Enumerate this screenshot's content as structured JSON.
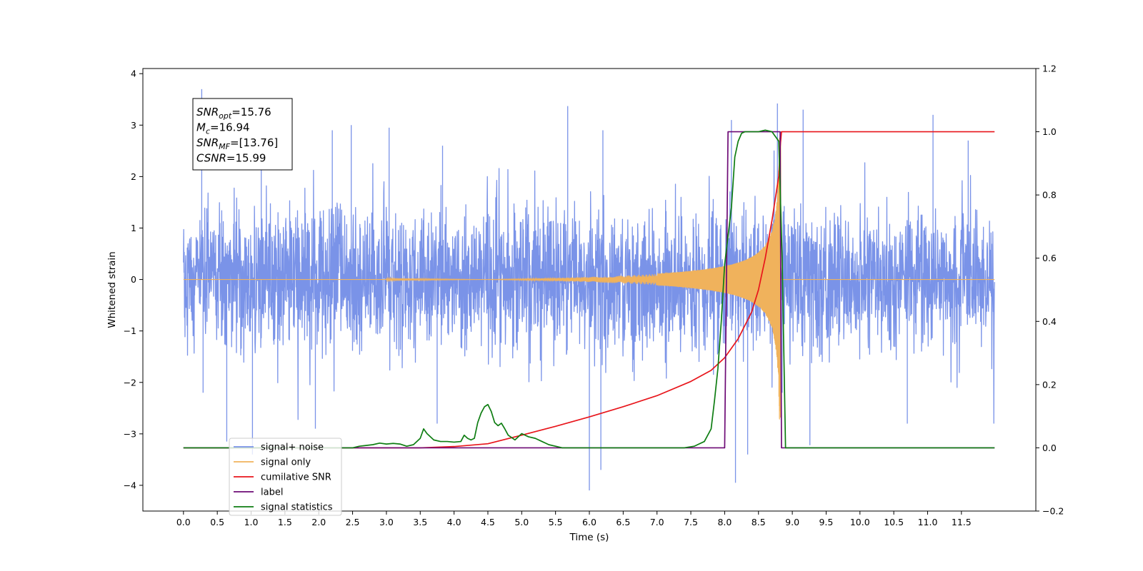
{
  "chart_data": {
    "type": "line",
    "xlabel": "Time (s)",
    "ylabel": "Whitened strain",
    "xlim": [
      -0.6,
      12.6
    ],
    "ylim": [
      -4.5,
      4.1
    ],
    "ylim_right": [
      -0.2,
      1.2
    ],
    "x_ticks": [
      0.0,
      0.5,
      1.0,
      1.5,
      2.0,
      2.5,
      3.0,
      3.5,
      4.0,
      4.5,
      5.0,
      5.5,
      6.0,
      6.5,
      7.0,
      7.5,
      8.0,
      8.5,
      9.0,
      9.5,
      10.0,
      10.5,
      11.0,
      11.5
    ],
    "x_tick_labels": [
      "0.0",
      "0.5",
      "1.0",
      "1.5",
      "2.0",
      "2.5",
      "3.0",
      "3.5",
      "4.0",
      "4.5",
      "5.0",
      "5.5",
      "6.0",
      "6.5",
      "7.0",
      "7.5",
      "8.0",
      "8.5",
      "9.0",
      "9.5",
      "10.0",
      "10.5",
      "11.0",
      "11.5"
    ],
    "y_ticks": [
      4,
      3,
      2,
      1,
      0,
      -1,
      -2,
      -3,
      -4
    ],
    "y_tick_labels": [
      "4",
      "3",
      "2",
      "1",
      "0",
      "−1",
      "−2",
      "−3",
      "−4"
    ],
    "y_ticks_right": [
      1.2,
      1.0,
      0.8,
      0.6,
      0.4,
      0.2,
      0.0,
      -0.2
    ],
    "y_tick_labels_right": [
      "1.2",
      "1.0",
      "0.8",
      "0.6",
      "0.4",
      "0.2",
      "0.0",
      "−0.2"
    ],
    "grid": false,
    "legend_position": "lower-left",
    "annotation": {
      "lines": [
        {
          "sym": "SNR",
          "sub": "opt",
          "val": "=15.76"
        },
        {
          "sym": "M",
          "sub": "c",
          "val": "=16.94"
        },
        {
          "sym": "SNR",
          "sub": "MF",
          "val": "=[13.76]"
        },
        {
          "sym": "CSNR",
          "sub": "",
          "val": "=15.99"
        }
      ]
    },
    "series": [
      {
        "name": "signal+ noise",
        "color": "#7a93e8",
        "axis": "left",
        "kind": "noise",
        "x_range": [
          0.0,
          11.99
        ],
        "typical_range": [
          -1.6,
          1.7
        ],
        "spikes": [
          [
            0.27,
            3.7
          ],
          [
            0.29,
            -2.2
          ],
          [
            0.64,
            -3.15
          ],
          [
            1.02,
            -3.4
          ],
          [
            1.15,
            2.6
          ],
          [
            2.2,
            2.9
          ],
          [
            2.48,
            3.0
          ],
          [
            3.04,
            2.95
          ],
          [
            3.83,
            2.6
          ],
          [
            5.68,
            3.37
          ],
          [
            6.0,
            -4.1
          ],
          [
            6.17,
            -3.7
          ],
          [
            6.2,
            2.9
          ],
          [
            8.1,
            3.1
          ],
          [
            8.16,
            -3.95
          ],
          [
            8.34,
            -3.4
          ],
          [
            8.78,
            3.42
          ],
          [
            8.85,
            -2.2
          ],
          [
            9.16,
            3.3
          ],
          [
            9.26,
            -3.22
          ],
          [
            11.08,
            3.2
          ],
          [
            11.6,
            2.7
          ],
          [
            1.95,
            -2.9
          ],
          [
            3.75,
            -2.8
          ],
          [
            10.7,
            -2.8
          ]
        ]
      },
      {
        "name": "signal only",
        "color": "#f0b25c",
        "axis": "left",
        "kind": "chirp",
        "x_range": [
          0.0,
          11.99
        ],
        "merger_time": 8.83,
        "peak_amplitude": 2.8
      },
      {
        "name": "cumilative SNR",
        "color": "#e8151b",
        "axis": "right",
        "x": [
          0.0,
          2.5,
          3.0,
          3.5,
          4.0,
          4.5,
          5.0,
          5.5,
          6.0,
          6.5,
          7.0,
          7.5,
          7.8,
          8.0,
          8.2,
          8.4,
          8.5,
          8.6,
          8.7,
          8.75,
          8.8,
          8.82,
          8.84,
          8.85,
          9.0,
          10.0,
          11.99
        ],
        "y": [
          0.0,
          0.0,
          0.0,
          0.0,
          0.004,
          0.013,
          0.04,
          0.068,
          0.098,
          0.13,
          0.165,
          0.21,
          0.245,
          0.285,
          0.345,
          0.43,
          0.5,
          0.6,
          0.72,
          0.79,
          0.86,
          0.95,
          1.0,
          1.0,
          1.0,
          1.0,
          1.0
        ]
      },
      {
        "name": "label",
        "color": "#6d0a75",
        "axis": "right",
        "x": [
          0.0,
          8.0,
          8.05,
          8.82,
          8.84,
          11.99
        ],
        "y": [
          0.0,
          0.0,
          1.0,
          1.0,
          0.0,
          0.0
        ]
      },
      {
        "name": "signal statistics",
        "color": "#0e7d12",
        "axis": "right",
        "x": [
          0.0,
          2.5,
          2.6,
          2.8,
          2.9,
          3.0,
          3.1,
          3.2,
          3.3,
          3.4,
          3.5,
          3.55,
          3.6,
          3.7,
          3.8,
          3.9,
          4.0,
          4.1,
          4.15,
          4.2,
          4.25,
          4.3,
          4.35,
          4.4,
          4.45,
          4.5,
          4.55,
          4.6,
          4.65,
          4.7,
          4.75,
          4.8,
          4.9,
          5.0,
          5.1,
          5.2,
          5.3,
          5.4,
          5.5,
          5.6,
          7.4,
          7.55,
          7.6,
          7.7,
          7.8,
          7.85,
          7.9,
          7.95,
          8.0,
          8.1,
          8.15,
          8.2,
          8.25,
          8.3,
          8.5,
          8.6,
          8.7,
          8.8,
          8.85,
          8.9,
          11.99
        ],
        "y": [
          0.0,
          0.0,
          0.005,
          0.01,
          0.015,
          0.012,
          0.014,
          0.012,
          0.005,
          0.01,
          0.03,
          0.06,
          0.045,
          0.025,
          0.02,
          0.02,
          0.018,
          0.02,
          0.04,
          0.03,
          0.025,
          0.03,
          0.08,
          0.11,
          0.13,
          0.137,
          0.115,
          0.08,
          0.07,
          0.078,
          0.06,
          0.04,
          0.025,
          0.045,
          0.035,
          0.03,
          0.02,
          0.01,
          0.005,
          0.0,
          0.0,
          0.005,
          0.01,
          0.02,
          0.06,
          0.15,
          0.25,
          0.4,
          0.58,
          0.76,
          0.92,
          0.97,
          0.995,
          1.0,
          1.0,
          1.005,
          1.0,
          0.97,
          0.6,
          0.0,
          0.0
        ]
      }
    ],
    "legend": [
      {
        "label": "signal+ noise",
        "color": "#7a93e8"
      },
      {
        "label": "signal only",
        "color": "#f0b25c"
      },
      {
        "label": "cumilative SNR",
        "color": "#e8151b"
      },
      {
        "label": "label",
        "color": "#6d0a75"
      },
      {
        "label": "signal statistics",
        "color": "#0e7d12"
      }
    ]
  }
}
